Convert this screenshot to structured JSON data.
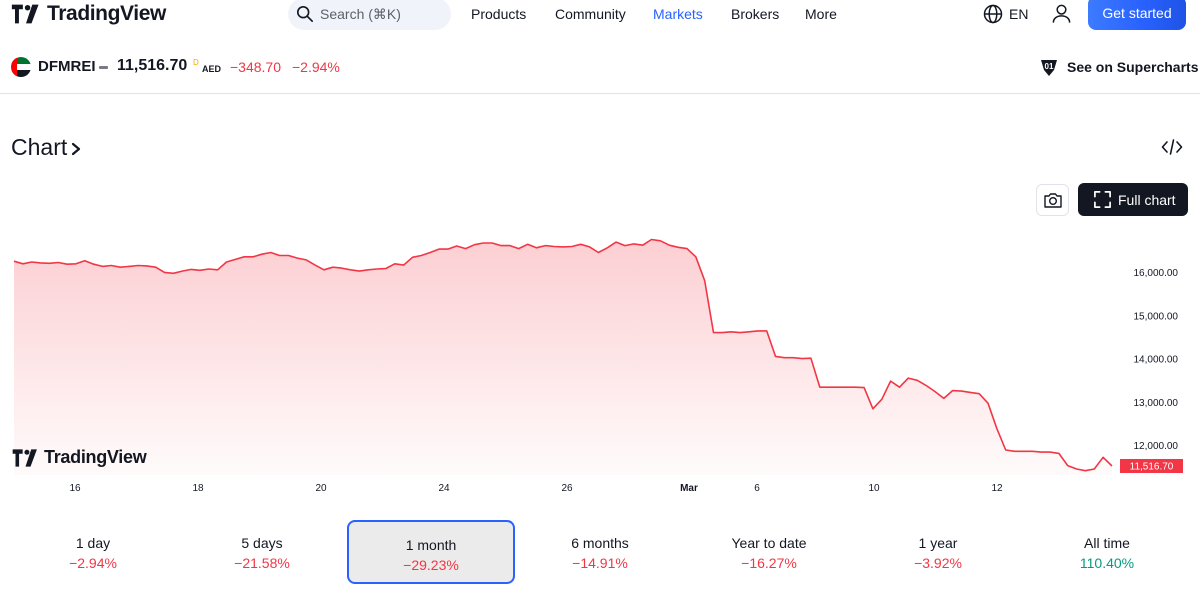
{
  "nav": {
    "logo_text": "TradingView",
    "search_placeholder": "Search (⌘K)",
    "items": [
      {
        "label": "Products",
        "active": false
      },
      {
        "label": "Community",
        "active": false
      },
      {
        "label": "Markets",
        "active": true
      },
      {
        "label": "Brokers",
        "active": false
      },
      {
        "label": "More",
        "active": false
      }
    ],
    "language": "EN",
    "get_started": "Get started"
  },
  "symbol": {
    "name": "DFMREI",
    "price": "11,516.70",
    "price_sup": "D",
    "currency": "AED",
    "change": "−348.70",
    "change_pct": "−2.94%",
    "supercharts": "See on Supercharts"
  },
  "chart_section": {
    "title": "Chart",
    "full_chart": "Full chart",
    "watermark": "TradingView"
  },
  "chart_data": {
    "type": "area",
    "y_ticks": [
      "16,000.00",
      "15,000.00",
      "14,000.00",
      "13,000.00",
      "12,000.00"
    ],
    "y_tick_values": [
      16000,
      15000,
      14000,
      13000,
      12000
    ],
    "x_ticks": [
      "16",
      "18",
      "20",
      "24",
      "26",
      "Mar",
      "6",
      "10",
      "12"
    ],
    "ylim": [
      11000,
      16800
    ],
    "last_value_label": "11,516.70",
    "line_color": "#f23645",
    "values": [
      16250,
      16190,
      16230,
      16210,
      16200,
      16220,
      16180,
      16190,
      16260,
      16180,
      16130,
      16150,
      16110,
      16130,
      16150,
      16140,
      16110,
      15990,
      15970,
      16020,
      16060,
      16040,
      16070,
      16050,
      16230,
      16290,
      16350,
      16350,
      16410,
      16450,
      16380,
      16380,
      16320,
      16280,
      16160,
      16050,
      16110,
      16090,
      16050,
      16020,
      16050,
      16070,
      16080,
      16190,
      16160,
      16340,
      16380,
      16450,
      16530,
      16530,
      16600,
      16540,
      16630,
      16670,
      16670,
      16610,
      16610,
      16540,
      16640,
      16560,
      16610,
      16590,
      16580,
      16590,
      16640,
      16580,
      16450,
      16560,
      16690,
      16610,
      16650,
      16620,
      16750,
      16720,
      16620,
      16570,
      16540,
      16350,
      15800,
      14600,
      14600,
      14620,
      14600,
      14620,
      14640,
      14640,
      14050,
      14020,
      14020,
      14000,
      14010,
      13340,
      13340,
      13340,
      13340,
      13340,
      13330,
      12840,
      13060,
      13480,
      13340,
      13550,
      13500,
      13380,
      13240,
      13080,
      13260,
      13250,
      13220,
      13190,
      12970,
      12380,
      11890,
      11860,
      11860,
      11860,
      11840,
      11840,
      11810,
      11530,
      11450,
      11410,
      11450,
      11720,
      11520
    ]
  },
  "periods": [
    {
      "label": "1 day",
      "value": "−2.94%",
      "positive": false,
      "active": false
    },
    {
      "label": "5 days",
      "value": "−21.58%",
      "positive": false,
      "active": false
    },
    {
      "label": "1 month",
      "value": "−29.23%",
      "positive": false,
      "active": true
    },
    {
      "label": "6 months",
      "value": "−14.91%",
      "positive": false,
      "active": false
    },
    {
      "label": "Year to date",
      "value": "−16.27%",
      "positive": false,
      "active": false
    },
    {
      "label": "1 year",
      "value": "−3.92%",
      "positive": false,
      "active": false
    },
    {
      "label": "All time",
      "value": "110.40%",
      "positive": true,
      "active": false
    }
  ]
}
